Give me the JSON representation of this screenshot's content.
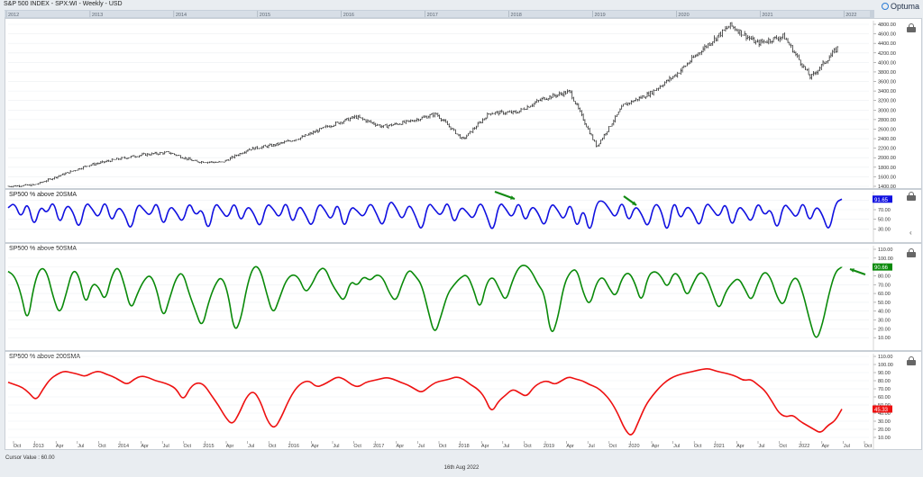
{
  "title": "S&P 500 INDEX - SPX:WI - Weekly - USD",
  "brand": "Optuma",
  "cursor_label": "Cursor Value : 60.00",
  "date_label": "16th Aug 2022",
  "colors": {
    "price": "#111111",
    "sma20": "#1010e0",
    "sma50": "#0a8a0a",
    "sma200": "#ee1111",
    "arrow": "#138a13"
  },
  "timeline": {
    "labels": [
      "2012",
      "2013",
      "2014",
      "2015",
      "2016",
      "2017",
      "2018",
      "2019",
      "2020",
      "2021",
      "2022"
    ],
    "bottom_labels": [
      "Oct",
      "2013",
      "Apr",
      "Jul",
      "Oct",
      "2014",
      "Apr",
      "Jul",
      "Oct",
      "2015",
      "Apr",
      "Jul",
      "Oct",
      "2016",
      "Apr",
      "Jul",
      "Oct",
      "2017",
      "Apr",
      "Jul",
      "Oct",
      "2018",
      "Apr",
      "Jul",
      "Oct",
      "2019",
      "Apr",
      "Jul",
      "Oct",
      "2020",
      "Apr",
      "Jul",
      "Oct",
      "2021",
      "Apr",
      "Jul",
      "Oct",
      "2022",
      "Apr",
      "Jul",
      "Oct"
    ]
  },
  "chart_data": [
    {
      "type": "ohlc",
      "title": "S&P 500 INDEX - SPX:WI - Weekly - USD",
      "x": [
        "2012-08",
        "2012-12",
        "2013-06",
        "2013-12",
        "2014-06",
        "2014-12",
        "2015-06",
        "2015-08",
        "2016-02",
        "2016-08",
        "2016-12",
        "2017-06",
        "2017-12",
        "2018-01",
        "2018-02",
        "2018-06",
        "2018-09",
        "2018-12",
        "2019-04",
        "2019-06",
        "2019-12",
        "2020-02",
        "2020-03",
        "2020-06",
        "2020-09",
        "2020-12",
        "2021-06",
        "2021-12",
        "2022-01",
        "2022-03",
        "2022-06",
        "2022-08"
      ],
      "values": [
        1400,
        1430,
        1640,
        1840,
        1960,
        2060,
        2110,
        1920,
        1900,
        2180,
        2270,
        2430,
        2670,
        2860,
        2650,
        2760,
        2920,
        2380,
        2940,
        2950,
        3240,
        3390,
        2230,
        3100,
        3350,
        3760,
        4300,
        4780,
        4400,
        4550,
        3680,
        4300
      ],
      "ylim": [
        1400,
        4800
      ],
      "yticks": [
        "1400.00",
        "1600.00",
        "1800.00",
        "2000.00",
        "2200.00",
        "2400.00",
        "2600.00",
        "2800.00",
        "3000.00",
        "3200.00",
        "3400.00",
        "3600.00",
        "3800.00",
        "4000.00",
        "4200.00",
        "4400.00",
        "4600.00",
        "4800.00"
      ]
    },
    {
      "type": "line",
      "title": "SP500 % above 20SMA",
      "last_value": "91.65",
      "ylim": [
        10,
        100
      ],
      "yticks": [
        "30.00",
        "50.00",
        "70.00",
        "90.00"
      ],
      "values": [
        74,
        85,
        50,
        90,
        30,
        80,
        60,
        92,
        35,
        82,
        68,
        25,
        88,
        72,
        50,
        94,
        40,
        78,
        62,
        22,
        85,
        70,
        55,
        92,
        30,
        80,
        65,
        40,
        90,
        55,
        75,
        20,
        88,
        68,
        50,
        91,
        40,
        80,
        63,
        28,
        85,
        72,
        50,
        93,
        35,
        82,
        60,
        30,
        86,
        70,
        45,
        90,
        25,
        78,
        68,
        52,
        88,
        62,
        30,
        92,
        75,
        45,
        85,
        58,
        20,
        88,
        70,
        55,
        93,
        35,
        78,
        65,
        48,
        90,
        60,
        18,
        88,
        72,
        50,
        92,
        40,
        80,
        64,
        30,
        86,
        70,
        45,
        90,
        25,
        78,
        15,
        85,
        90,
        72,
        50,
        93,
        40,
        80,
        62,
        28,
        86,
        72,
        15,
        96,
        45,
        80,
        64,
        30,
        88,
        70,
        52,
        90,
        28,
        80,
        65,
        40,
        90,
        55,
        75,
        22,
        85,
        70,
        50,
        92,
        40,
        80,
        60,
        20,
        85,
        92
      ]
    },
    {
      "type": "line",
      "title": "SP500 % above 50SMA",
      "last_value": "90.66",
      "ylim": [
        0,
        110
      ],
      "yticks": [
        "10.00",
        "20.00",
        "30.00",
        "40.00",
        "50.00",
        "60.00",
        "70.00",
        "80.00",
        "90.00",
        "100.00",
        "110.00"
      ],
      "values": [
        85,
        80,
        60,
        25,
        70,
        90,
        85,
        55,
        35,
        60,
        88,
        80,
        45,
        72,
        68,
        50,
        80,
        92,
        70,
        40,
        60,
        75,
        82,
        65,
        30,
        55,
        78,
        85,
        60,
        40,
        20,
        50,
        70,
        80,
        62,
        15,
        30,
        70,
        92,
        88,
        60,
        35,
        55,
        75,
        82,
        78,
        60,
        70,
        86,
        90,
        72,
        60,
        50,
        75,
        68,
        80,
        74,
        82,
        78,
        60,
        50,
        72,
        88,
        80,
        70,
        40,
        12,
        35,
        60,
        70,
        78,
        82,
        65,
        40,
        72,
        80,
        65,
        50,
        74,
        90,
        93,
        85,
        70,
        60,
        10,
        30,
        70,
        85,
        88,
        60,
        45,
        72,
        80,
        66,
        55,
        78,
        85,
        72,
        48,
        80,
        86,
        80,
        65,
        85,
        78,
        55,
        72,
        85,
        80,
        60,
        40,
        62,
        72,
        78,
        65,
        50,
        72,
        86,
        78,
        55,
        45,
        72,
        80,
        60,
        30,
        5,
        25,
        60,
        85,
        90
      ]
    },
    {
      "type": "line",
      "title": "SP500 % above 200SMA",
      "last_value": "45.33",
      "ylim": [
        0,
        110
      ],
      "yticks": [
        "10.00",
        "20.00",
        "30.00",
        "40.00",
        "50.00",
        "60.00",
        "70.00",
        "80.00",
        "90.00",
        "100.00",
        "110.00"
      ],
      "values": [
        78,
        75,
        72,
        65,
        55,
        70,
        82,
        88,
        92,
        90,
        88,
        85,
        90,
        92,
        88,
        85,
        80,
        75,
        82,
        86,
        84,
        80,
        78,
        75,
        70,
        55,
        72,
        78,
        75,
        62,
        50,
        35,
        25,
        40,
        60,
        68,
        55,
        30,
        20,
        35,
        55,
        70,
        78,
        80,
        72,
        75,
        80,
        85,
        82,
        75,
        72,
        78,
        80,
        82,
        84,
        82,
        78,
        75,
        70,
        65,
        72,
        78,
        80,
        82,
        85,
        82,
        75,
        70,
        60,
        40,
        55,
        62,
        70,
        65,
        60,
        72,
        78,
        80,
        75,
        80,
        85,
        82,
        80,
        75,
        72,
        65,
        55,
        40,
        20,
        10,
        30,
        50,
        62,
        72,
        80,
        85,
        88,
        90,
        92,
        94,
        95,
        92,
        90,
        88,
        85,
        80,
        82,
        75,
        68,
        55,
        40,
        35,
        38,
        30,
        25,
        20,
        15,
        25,
        30,
        45
      ]
    }
  ],
  "annotations": [
    {
      "pane": 1,
      "label": "arrow-1"
    },
    {
      "pane": 1,
      "label": "arrow-2"
    },
    {
      "pane": 2,
      "label": "arrow-3"
    }
  ]
}
